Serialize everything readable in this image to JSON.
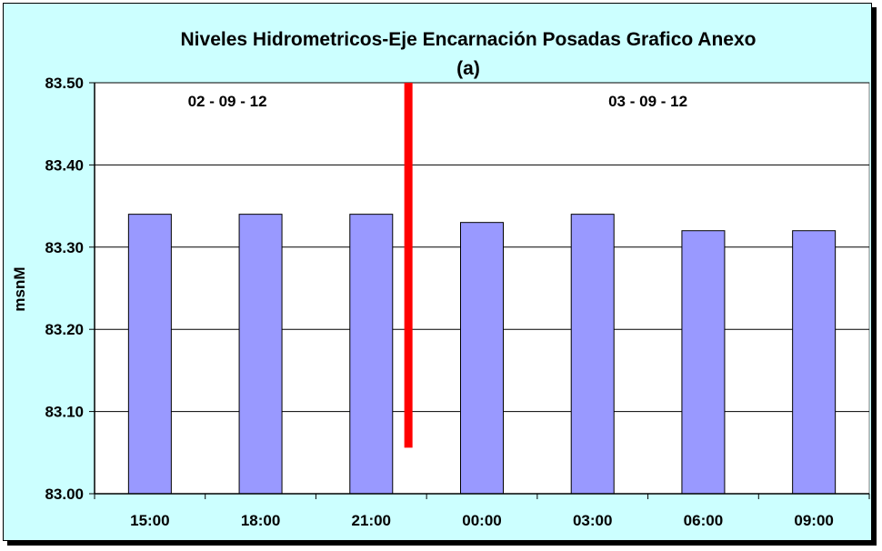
{
  "chart_data": {
    "type": "bar",
    "title": "Niveles Hidrometricos-Eje Encarnación Posadas Grafico Anexo",
    "subtitle": "(a)",
    "xlabel": "",
    "ylabel": "msnM",
    "categories": [
      "15:00",
      "18:00",
      "21:00",
      "00:00",
      "03:00",
      "06:00",
      "09:00"
    ],
    "values": [
      83.34,
      83.34,
      83.34,
      83.33,
      83.34,
      83.32,
      83.32
    ],
    "ylim": [
      83.0,
      83.5
    ],
    "yticks": [
      "83.00",
      "83.10",
      "83.20",
      "83.30",
      "83.40",
      "83.50"
    ],
    "grid": true,
    "annotations": {
      "date_left": "02 - 09 - 12",
      "date_right": "03 - 09 - 12"
    },
    "divider_range": [
      83.056,
      83.5
    ]
  },
  "colors": {
    "background": "#ccffff",
    "plot_area": "#ffffff",
    "bar": "#9999ff",
    "divider": "#ff0000"
  }
}
